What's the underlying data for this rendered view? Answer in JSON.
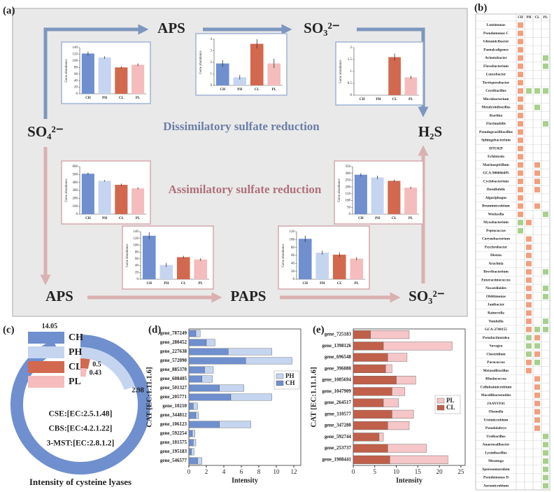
{
  "panel_labels": [
    "(a)",
    "(b)",
    "(c)",
    "(d)",
    "(e)"
  ],
  "diagram": {
    "nodes": [
      "SO₄²⁻",
      "APS",
      "SO₃²⁻",
      "H₂S",
      "APS",
      "PAPS",
      "SO₃²⁻"
    ],
    "pathways": [
      "Dissimilatory sulfate reduction",
      "Assimilatory sulfate reduction"
    ]
  },
  "table": {
    "columns": [
      "CH",
      "PH",
      "CL",
      "PL"
    ],
    "rows": [
      {
        "name": "Luteimonas",
        "cells": [
          "#f0a07f",
          null,
          null,
          null
        ]
      },
      {
        "name": "Pseudomonas C",
        "cells": [
          "#f0a07f",
          null,
          null,
          null
        ]
      },
      {
        "name": "Glutamicibacter",
        "cells": [
          "#f0a07f",
          null,
          null,
          null
        ]
      },
      {
        "name": "Paenalcaligenes",
        "cells": [
          "#f0a07f",
          null,
          null,
          null
        ]
      },
      {
        "name": "Acinetobacter",
        "cells": [
          "#f0a07f",
          null,
          null,
          "#a8d08d"
        ]
      },
      {
        "name": "Flavobacterium",
        "cells": [
          "#f0a07f",
          null,
          null,
          "#a8d08d"
        ]
      },
      {
        "name": "Leucobacter",
        "cells": [
          "#f0a07f",
          null,
          null,
          null
        ]
      },
      {
        "name": "Terrisporobacter",
        "cells": [
          "#f0a07f",
          null,
          null,
          null
        ]
      },
      {
        "name": "Cereibacillus",
        "cells": [
          "#f0a07f",
          "#a8d08d",
          "#a8d08d",
          "#a8d08d"
        ]
      },
      {
        "name": "Microbacterium",
        "cells": [
          "#f0a07f",
          null,
          null,
          null
        ]
      },
      {
        "name": "Metalysinibacillus",
        "cells": [
          "#f0a07f",
          null,
          "#a8d08d",
          null
        ]
      },
      {
        "name": "Kurthia",
        "cells": [
          "#f0a07f",
          null,
          null,
          null
        ]
      },
      {
        "name": "Flavimobilis",
        "cells": [
          "#f0a07f",
          null,
          null,
          "#a8d08d"
        ]
      },
      {
        "name": "Pseudogracilibacillus",
        "cells": [
          "#f0a07f",
          null,
          null,
          null
        ]
      },
      {
        "name": "Sphingobacterium",
        "cells": [
          "#f0a07f",
          null,
          null,
          null
        ]
      },
      {
        "name": "DTU029",
        "cells": [
          "#f0a07f",
          null,
          null,
          null
        ]
      },
      {
        "name": "Echinicola",
        "cells": [
          "#f0a07f",
          null,
          null,
          null
        ]
      },
      {
        "name": "Marinospirillum",
        "cells": [
          "#f0a07f",
          null,
          "#f0a07f",
          null
        ]
      },
      {
        "name": "GCA-900066495",
        "cells": [
          "#f0a07f",
          null,
          "#f0a07f",
          null
        ]
      },
      {
        "name": "Cyclobacterium",
        "cells": [
          "#f0a07f",
          null,
          "#f0a07f",
          null
        ]
      },
      {
        "name": "Desulfofelis",
        "cells": [
          "#f0a07f",
          null,
          "#f0a07f",
          null
        ]
      },
      {
        "name": "Algoriphagus",
        "cells": [
          "#f0a07f",
          null,
          null,
          null
        ]
      },
      {
        "name": "Brumimicrobium",
        "cells": [
          "#f0a07f",
          null,
          "#f0a07f",
          null
        ]
      },
      {
        "name": "Weeksella",
        "cells": [
          "#f0a07f",
          null,
          null,
          "#a8d08d"
        ]
      },
      {
        "name": "Mycobacterium",
        "cells": [
          "#a8d08d",
          "#f0a07f",
          null,
          null
        ]
      },
      {
        "name": "Peptococcus",
        "cells": [
          "#a8d08d",
          null,
          null,
          null
        ]
      },
      {
        "name": "Corynebacterium",
        "cells": [
          null,
          "#f0a07f",
          null,
          null
        ]
      },
      {
        "name": "Psychrobacter",
        "cells": [
          null,
          "#f0a07f",
          null,
          null
        ]
      },
      {
        "name": "Dietzia",
        "cells": [
          null,
          "#f0a07f",
          null,
          null
        ]
      },
      {
        "name": "Arachnia",
        "cells": [
          null,
          "#f0a07f",
          null,
          null
        ]
      },
      {
        "name": "Brevibacterium",
        "cells": [
          null,
          "#f0a07f",
          null,
          "#a8d08d"
        ]
      },
      {
        "name": "Enteractinococcus",
        "cells": [
          null,
          "#f0a07f",
          null,
          null
        ]
      },
      {
        "name": "Nocardioides",
        "cells": [
          null,
          "#f0a07f",
          null,
          "#a8d08d"
        ]
      },
      {
        "name": "Oblitimonas",
        "cells": [
          null,
          "#f0a07f",
          null,
          "#a8d08d"
        ]
      },
      {
        "name": "Janibacter",
        "cells": [
          null,
          "#f0a07f",
          null,
          null
        ]
      },
      {
        "name": "Rainevella",
        "cells": [
          null,
          "#f0a07f",
          null,
          null
        ]
      },
      {
        "name": "Tomitella",
        "cells": [
          null,
          "#f0a07f",
          null,
          "#a8d08d"
        ]
      },
      {
        "name": "GCA-2748155",
        "cells": [
          null,
          "#f0a07f",
          "#a8d08d",
          "#a8d08d"
        ]
      },
      {
        "name": "Pseudactinotalea",
        "cells": [
          null,
          "#a8d08d",
          "#f0a07f",
          null
        ]
      },
      {
        "name": "Savagea",
        "cells": [
          null,
          "#a8d08d",
          "#a8d08d",
          null
        ]
      },
      {
        "name": "Clostridium",
        "cells": [
          null,
          "#a8d08d",
          "#f0a07f",
          null
        ]
      },
      {
        "name": "Paracoccus",
        "cells": [
          null,
          "#f0a07f",
          "#a8d08d",
          null
        ]
      },
      {
        "name": "Metasolibacillus",
        "cells": [
          null,
          "#f0a07f",
          null,
          null
        ]
      },
      {
        "name": "Rhodococcus",
        "cells": [
          null,
          null,
          "#f0a07f",
          null
        ]
      },
      {
        "name": "Cellulosimicrobium",
        "cells": [
          null,
          null,
          "#f0a07f",
          null
        ]
      },
      {
        "name": "Macellibacteroides",
        "cells": [
          null,
          null,
          "#f0a07f",
          null
        ]
      },
      {
        "name": "JAAYSY01",
        "cells": [
          null,
          null,
          "#f0a07f",
          null
        ]
      },
      {
        "name": "Olsenella",
        "cells": [
          null,
          null,
          "#f0a07f",
          null
        ]
      },
      {
        "name": "Ureimicrobium",
        "cells": [
          null,
          null,
          "#f0a07f",
          null
        ]
      },
      {
        "name": "Pseudolabrys",
        "cells": [
          null,
          null,
          "#f0a07f",
          null
        ]
      },
      {
        "name": "Ureibacillus",
        "cells": [
          null,
          null,
          null,
          "#a8d08d"
        ]
      },
      {
        "name": "Anaerosalibacter",
        "cells": [
          null,
          null,
          null,
          "#a8d08d"
        ]
      },
      {
        "name": "Lysinibacillus",
        "cells": [
          null,
          null,
          null,
          "#a8d08d"
        ]
      },
      {
        "name": "Mesotoga",
        "cells": [
          null,
          null,
          null,
          "#a8d08d"
        ]
      },
      {
        "name": "Sporosomaculum",
        "cells": [
          null,
          null,
          null,
          "#a8d08d"
        ]
      },
      {
        "name": "Pseudomonas D",
        "cells": [
          null,
          null,
          null,
          "#a8d08d"
        ]
      },
      {
        "name": "Aeromicrobium",
        "cells": [
          null,
          null,
          null,
          "#a8d08d"
        ]
      }
    ]
  },
  "chart_data": [
    {
      "type": "bar",
      "ylabel": "Gene abundance",
      "categories": [
        "CH",
        "PH",
        "CL",
        "PL"
      ],
      "colors": [
        "#6f8fce",
        "#c5d5f0",
        "#d2694f",
        "#f4bcbc"
      ],
      "values": [
        122,
        110,
        80,
        88
      ],
      "errors": [
        6,
        4,
        3,
        4
      ],
      "ylim": [
        0,
        140
      ],
      "yticks": [
        0,
        20,
        40,
        60,
        80,
        100,
        120,
        140
      ]
    },
    {
      "type": "bar",
      "ylabel": "Gene abundance",
      "categories": [
        "CH",
        "PH",
        "CL",
        "PL"
      ],
      "colors": [
        "#6f8fce",
        "#c5d5f0",
        "#d2694f",
        "#f4bcbc"
      ],
      "values": [
        1.9,
        0.7,
        3.6,
        1.9
      ],
      "errors": [
        0.3,
        0.2,
        0.4,
        0.4
      ],
      "ylim": [
        0,
        4
      ],
      "yticks": [
        0,
        1,
        2,
        3,
        4
      ]
    },
    {
      "type": "bar",
      "ylabel": "Gene abundance",
      "categories": [
        "CH",
        "PH",
        "CL",
        "PL"
      ],
      "colors": [
        "#6f8fce",
        "#c5d5f0",
        "#d2694f",
        "#f4bcbc"
      ],
      "values": [
        0,
        0,
        1.6,
        0.75
      ],
      "errors": [
        0,
        0,
        0.15,
        0.07
      ],
      "ylim": [
        0,
        2
      ],
      "yticks": [
        0,
        0.5,
        1,
        1.5,
        2
      ]
    },
    {
      "type": "bar",
      "ylabel": "Gene abundance",
      "categories": [
        "CH",
        "PH",
        "CL",
        "PL"
      ],
      "colors": [
        "#6f8fce",
        "#c5d5f0",
        "#d2694f",
        "#f4bcbc"
      ],
      "values": [
        510,
        420,
        370,
        325
      ],
      "errors": [
        15,
        10,
        15,
        12
      ],
      "ylim": [
        0,
        600
      ],
      "yticks": [
        0,
        100,
        200,
        300,
        400,
        500,
        600
      ]
    },
    {
      "type": "bar",
      "ylabel": "Gene abundance",
      "categories": [
        "CH",
        "PH",
        "CL",
        "PL"
      ],
      "colors": [
        "#6f8fce",
        "#c5d5f0",
        "#d2694f",
        "#f4bcbc"
      ],
      "values": [
        128,
        42,
        65,
        58
      ],
      "errors": [
        10,
        6,
        4,
        4
      ],
      "ylim": [
        0,
        140
      ],
      "yticks": [
        0,
        20,
        40,
        60,
        80,
        100,
        120,
        140
      ]
    },
    {
      "type": "bar",
      "ylabel": "Gene abundance",
      "categories": [
        "CH",
        "PH",
        "CL",
        "PL"
      ],
      "colors": [
        "#6f8fce",
        "#c5d5f0",
        "#d2694f",
        "#f4bcbc"
      ],
      "values": [
        102,
        67,
        62,
        52
      ],
      "errors": [
        8,
        5,
        6,
        4
      ],
      "ylim": [
        0,
        120
      ],
      "yticks": [
        0,
        20,
        40,
        60,
        80,
        100,
        120
      ]
    },
    {
      "type": "bar",
      "ylabel": "Gene abundance",
      "categories": [
        "CH",
        "PH",
        "CL",
        "PL"
      ],
      "colors": [
        "#6f8fce",
        "#c5d5f0",
        "#d2694f",
        "#f4bcbc"
      ],
      "values": [
        290,
        270,
        245,
        195
      ],
      "errors": [
        12,
        13,
        8,
        8
      ],
      "ylim": [
        0,
        350
      ],
      "yticks": [
        0,
        50,
        100,
        150,
        200,
        250,
        300,
        350
      ]
    },
    {
      "type": "radial_bar",
      "title": "Intensity of cysteine lyases",
      "categories": [
        "CH",
        "PH",
        "CL",
        "PL"
      ],
      "colors": [
        "#6f8fce",
        "#c5d5f0",
        "#d2694f",
        "#f4bcbc"
      ],
      "values": [
        14.05,
        2.98,
        0.5,
        0.43
      ],
      "rlim": [
        0,
        15
      ],
      "annotations": [
        "CSE:[EC:2.5.1.48]",
        "CBS:[EC:4.2.1.22]",
        "3-MST:[EC:2.8.1.2]"
      ]
    },
    {
      "type": "hbar_stacked",
      "ylabel": "CAT [EC:1.11.1.6]",
      "xlabel": "Intensity",
      "categories": [
        "gene_787249",
        "gene_280452",
        "gene_227638",
        "gene_572090",
        "gene_885370",
        "gene_608405",
        "gene_501327",
        "gene_205771",
        "gene_10210",
        "gene_344812",
        "gene_106123",
        "gene_592254",
        "gene_101575",
        "gene_195183",
        "gene_546577"
      ],
      "series": [
        {
          "name": "CH",
          "color": "#6f8fce",
          "values": [
            0.8,
            2.0,
            4.5,
            6.5,
            1.8,
            1.5,
            3.5,
            4.8,
            0.5,
            0.8,
            3.5,
            0.4,
            0.5,
            0.3,
            1.0
          ]
        },
        {
          "name": "PH",
          "color": "#c5d5f0",
          "values": [
            0.5,
            1.0,
            5.0,
            5.3,
            1.0,
            1.2,
            2.8,
            4.7,
            0.5,
            0.3,
            3.6,
            0.3,
            0.3,
            0.3,
            0.5
          ]
        }
      ],
      "xlim": [
        0,
        12.8
      ],
      "xticks": [
        0,
        2,
        4,
        6,
        8,
        10,
        12
      ]
    },
    {
      "type": "hbar_stacked",
      "ylabel": "CAT [EC:1.11.1.6]",
      "xlabel": "Intensity",
      "categories": [
        "gene_725183",
        "gene_1398126",
        "gene_696548",
        "gene_396080",
        "gene_1085694",
        "gene_1047909",
        "gene_264517",
        "gene_110577",
        "gene_347280",
        "gene_592744",
        "gene_253737",
        "gene_1908441"
      ],
      "series": [
        {
          "name": "CL",
          "color": "#c0604a",
          "values": [
            4,
            7,
            8,
            7.5,
            10,
            9,
            7,
            9,
            8,
            6,
            8,
            8.5
          ]
        },
        {
          "name": "PL",
          "color": "#f6c6c8",
          "values": [
            9,
            16,
            4.5,
            1.5,
            4.5,
            3,
            3.5,
            5,
            5,
            1,
            9,
            13.5
          ]
        }
      ],
      "xlim": [
        0,
        26
      ],
      "xticks": [
        0,
        5,
        10,
        15,
        20,
        25
      ]
    }
  ]
}
